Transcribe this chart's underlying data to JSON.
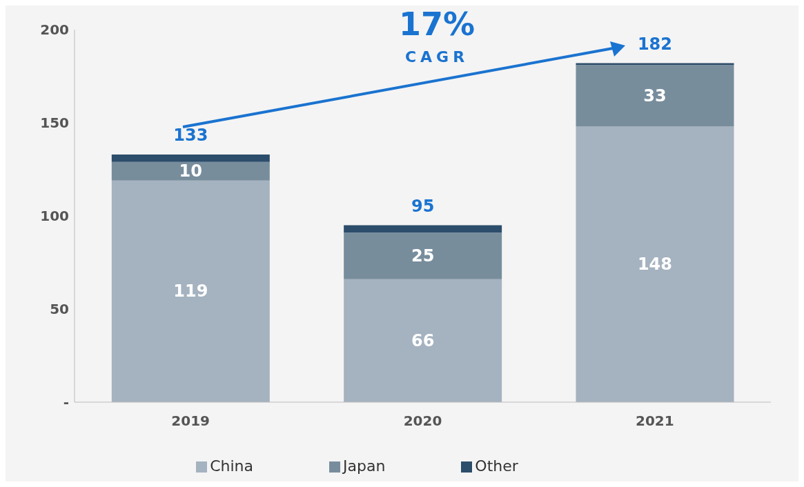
{
  "chart_data": {
    "type": "bar",
    "stacked": true,
    "categories": [
      "2019",
      "2020",
      "2021"
    ],
    "series": [
      {
        "name": "China",
        "color": "#a5b2bf",
        "values": [
          119,
          66,
          148
        ],
        "value_labels": [
          "119",
          "66",
          "148"
        ]
      },
      {
        "name": "Japan",
        "color": "#788d9c",
        "values": [
          10,
          25,
          33
        ],
        "value_labels": [
          "10",
          "25",
          "33"
        ]
      },
      {
        "name": "Other",
        "color": "#2c4d6b",
        "values": [
          4,
          4,
          1
        ],
        "value_labels": [
          null,
          null,
          null
        ]
      }
    ],
    "totals": [
      "133",
      "95",
      "182"
    ],
    "ylim": [
      0,
      200
    ],
    "yticks": [
      {
        "value": 0,
        "label": "-"
      },
      50,
      100,
      150,
      200
    ],
    "grid": false,
    "legend": "bottom",
    "annotations": [
      "17%",
      "CAGR"
    ]
  }
}
